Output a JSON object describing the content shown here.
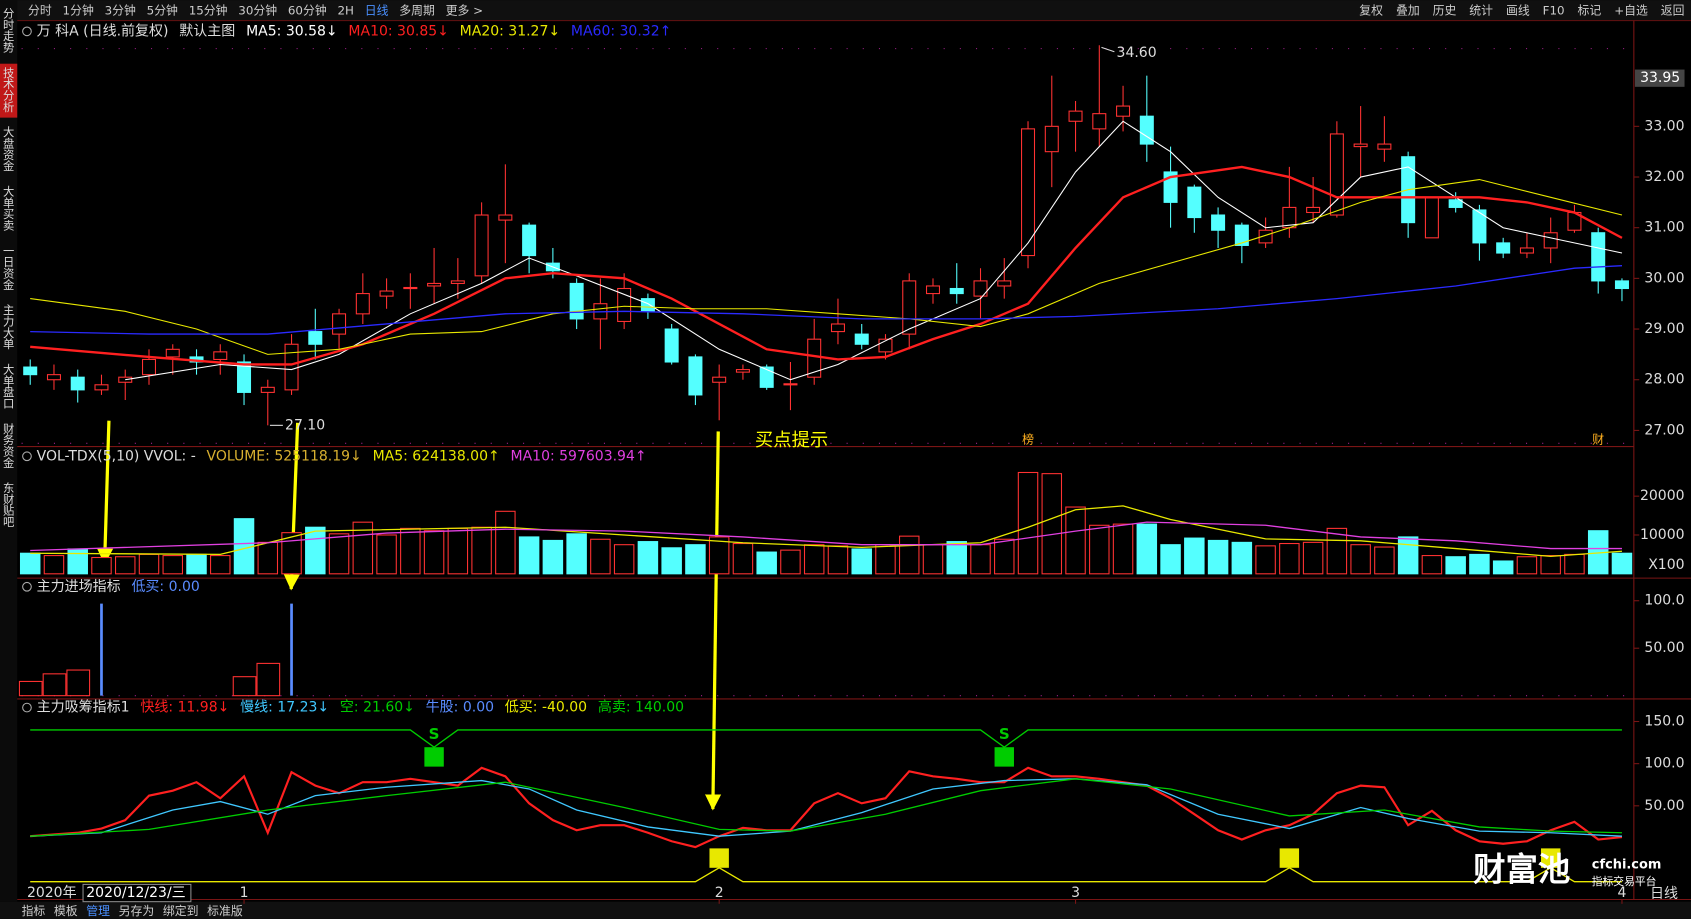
{
  "toolbar": {
    "periods": [
      "分时",
      "1分钟",
      "3分钟",
      "5分钟",
      "15分钟",
      "30分钟",
      "60分钟",
      "2H",
      "日线",
      "多周期",
      "更多 >"
    ],
    "active": 8,
    "tools": [
      "复权",
      "叠加",
      "历史",
      "统计",
      "画线",
      "F10",
      "标记",
      "+自选",
      "返回"
    ]
  },
  "side_tabs": [
    "分时走势",
    "技术分析",
    "大盘资金",
    "大单买卖",
    "一日资金",
    "主力大单",
    "大单盘口",
    "财务资金",
    "东财贴吧"
  ],
  "side_active": 1,
  "chart_data": [
    {
      "type": "candlestick",
      "title": "万 科A (日线.前复权)",
      "subtitle": "默认主图",
      "xlim": [
        -0.5,
        67.5
      ],
      "ylim": [
        26.66,
        34.64
      ],
      "yticks": [
        {
          "value": 27,
          "label": "27.00"
        },
        {
          "value": 28,
          "label": "28.00"
        },
        {
          "value": 29,
          "label": "29.00"
        },
        {
          "value": 30,
          "label": "30.00"
        },
        {
          "value": 31,
          "label": "31.00"
        },
        {
          "value": 32,
          "label": "32.00"
        },
        {
          "value": 33,
          "label": "33.00"
        }
      ],
      "xticks": [
        {
          "value": 9,
          "label": "1"
        },
        {
          "value": 29,
          "label": "2"
        },
        {
          "value": 44,
          "label": "3"
        },
        {
          "value": 67,
          "label": "4"
        }
      ],
      "up_color": "#ff3232",
      "down_color": "#54ffff",
      "open": [
        28.25,
        28.0,
        28.05,
        27.8,
        27.95,
        28.1,
        28.45,
        28.45,
        28.4,
        28.35,
        27.75,
        27.8,
        28.95,
        28.9,
        29.3,
        29.65,
        29.8,
        29.85,
        29.9,
        30.05,
        31.15,
        31.05,
        30.3,
        29.9,
        29.2,
        29.15,
        29.6,
        29.0,
        28.45,
        27.95,
        28.15,
        28.25,
        27.9,
        28.05,
        28.95,
        28.9,
        28.55,
        28.9,
        29.7,
        29.8,
        29.65,
        29.85,
        30.45,
        32.5,
        33.1,
        32.95,
        33.2,
        33.2,
        32.1,
        31.8,
        31.25,
        31.05,
        30.7,
        31.0,
        31.3,
        31.25,
        32.6,
        32.55,
        32.4,
        30.8,
        31.55,
        31.35,
        30.7,
        30.5,
        30.6,
        30.95,
        30.9,
        29.95
      ],
      "high": [
        28.4,
        28.3,
        28.2,
        28.1,
        28.2,
        28.6,
        28.7,
        28.6,
        28.7,
        28.5,
        28.0,
        28.9,
        29.4,
        29.4,
        30.1,
        30.0,
        30.1,
        30.6,
        30.4,
        31.5,
        32.25,
        31.1,
        30.6,
        30.0,
        30.0,
        30.1,
        29.7,
        29.1,
        28.5,
        28.3,
        28.3,
        28.3,
        28.35,
        29.2,
        29.6,
        29.1,
        28.9,
        30.1,
        30.0,
        30.3,
        30.2,
        30.4,
        33.1,
        34.0,
        33.5,
        34.6,
        33.8,
        34.0,
        32.6,
        31.85,
        31.4,
        31.1,
        31.2,
        32.2,
        32.0,
        33.1,
        33.4,
        33.2,
        32.5,
        31.6,
        31.7,
        31.45,
        30.8,
        30.9,
        31.2,
        31.45,
        31.0,
        30.0
      ],
      "low": [
        27.9,
        27.8,
        27.55,
        27.7,
        27.6,
        27.9,
        28.1,
        28.1,
        28.1,
        27.5,
        27.1,
        27.7,
        28.4,
        28.6,
        29.1,
        29.4,
        29.4,
        29.5,
        29.6,
        29.9,
        30.3,
        30.1,
        30.0,
        29.0,
        28.6,
        29.0,
        29.2,
        28.3,
        27.5,
        27.2,
        28.0,
        27.8,
        27.4,
        27.9,
        28.7,
        28.6,
        28.4,
        28.6,
        29.5,
        29.5,
        29.2,
        29.6,
        30.2,
        31.8,
        32.5,
        32.6,
        32.9,
        32.3,
        31.0,
        30.9,
        30.6,
        30.3,
        30.6,
        30.8,
        31.1,
        31.2,
        32.0,
        32.3,
        30.8,
        30.8,
        31.3,
        30.35,
        30.4,
        30.4,
        30.3,
        30.9,
        29.7,
        29.55
      ],
      "close": [
        28.1,
        28.1,
        27.8,
        27.9,
        28.05,
        28.4,
        28.6,
        28.35,
        28.55,
        27.75,
        27.85,
        28.7,
        28.7,
        29.3,
        29.7,
        29.75,
        29.82,
        29.9,
        29.95,
        31.25,
        31.25,
        30.45,
        30.15,
        29.2,
        29.5,
        29.8,
        29.35,
        28.35,
        27.7,
        28.05,
        28.2,
        27.85,
        27.92,
        28.8,
        29.1,
        28.7,
        28.8,
        29.95,
        29.85,
        29.7,
        29.95,
        29.95,
        32.95,
        33.0,
        33.3,
        33.25,
        33.4,
        32.65,
        31.5,
        31.2,
        30.95,
        30.65,
        30.95,
        31.4,
        31.4,
        32.85,
        32.65,
        32.65,
        31.1,
        31.6,
        31.4,
        30.7,
        30.5,
        30.6,
        30.9,
        31.3,
        29.95,
        29.8
      ],
      "series": [
        {
          "name": "MA5: 30.58↓",
          "color": "#ffffff",
          "width": 1,
          "x": [
            4,
            8,
            11,
            13,
            16,
            19,
            21,
            23,
            26,
            29,
            32,
            34,
            37,
            40,
            42,
            44,
            46,
            48,
            50,
            52,
            54,
            56,
            58,
            60,
            62,
            64,
            67
          ],
          "values": [
            28.0,
            28.3,
            28.2,
            28.5,
            29.3,
            29.9,
            30.4,
            30.05,
            29.5,
            28.6,
            28.0,
            28.3,
            29.0,
            29.6,
            30.7,
            32.1,
            33.1,
            32.5,
            31.6,
            31.0,
            31.1,
            32.0,
            32.2,
            31.6,
            31.0,
            30.8,
            30.5
          ]
        },
        {
          "name": "MA10: 30.85↓",
          "color": "#ff2020",
          "width": 2.2,
          "x": [
            0,
            5,
            9,
            11,
            14,
            17,
            20,
            22,
            25,
            27,
            29,
            31,
            34,
            36,
            38,
            40,
            42,
            44,
            46,
            48,
            51,
            53,
            55,
            57,
            59,
            61,
            63,
            65,
            67
          ],
          "values": [
            28.65,
            28.45,
            28.3,
            28.3,
            28.7,
            29.3,
            30.0,
            30.1,
            30.0,
            29.6,
            29.1,
            28.6,
            28.4,
            28.45,
            28.8,
            29.1,
            29.5,
            30.6,
            31.6,
            32.0,
            32.2,
            32.0,
            31.6,
            31.6,
            31.6,
            31.6,
            31.5,
            31.3,
            30.8
          ]
        },
        {
          "name": "MA20: 31.27↓",
          "color": "#e8e800",
          "width": 1,
          "x": [
            0,
            4,
            7,
            10,
            13,
            16,
            19,
            22,
            25,
            28,
            31,
            34,
            37,
            40,
            42,
            45,
            48,
            51,
            53,
            56,
            58,
            61,
            64,
            67
          ],
          "values": [
            29.6,
            29.35,
            29.0,
            28.5,
            28.6,
            28.9,
            28.95,
            29.3,
            29.45,
            29.4,
            29.4,
            29.3,
            29.2,
            29.05,
            29.3,
            29.9,
            30.3,
            30.7,
            31.0,
            31.5,
            31.75,
            31.95,
            31.6,
            31.25
          ]
        },
        {
          "name": "MA60: 30.32↑",
          "color": "#2a2aff",
          "width": 1.2,
          "x": [
            0,
            5,
            10,
            15,
            20,
            25,
            30,
            35,
            40,
            44,
            50,
            55,
            60,
            65,
            67
          ],
          "values": [
            28.95,
            28.9,
            28.9,
            29.1,
            29.3,
            29.35,
            29.3,
            29.2,
            29.2,
            29.25,
            29.4,
            29.6,
            29.85,
            30.2,
            30.25
          ]
        }
      ],
      "annotations": [
        {
          "x": 45,
          "y": 34.6,
          "text": "34.60"
        },
        {
          "x": 10,
          "y": 27.1,
          "text": "27.10"
        }
      ],
      "price_tag": 33.95,
      "event_marks": [
        {
          "x": 42,
          "text": "榜"
        },
        {
          "x": 66,
          "text": "财"
        }
      ],
      "note": "买点提示"
    },
    {
      "type": "bar",
      "title": "VOL-TDX(5,10) VVOL: -",
      "xlim": [
        -0.5,
        67.5
      ],
      "ylim": [
        0,
        27500
      ],
      "yticks": [
        10000,
        20000
      ],
      "unit_label": "X100",
      "series": [
        {
          "name": "VOLUME: 525118.19↓",
          "color": "#d8b030",
          "style": "updown",
          "up_color": "#ff3232",
          "down_color": "#54ffff",
          "values": [
            5300,
            4700,
            6400,
            4200,
            4400,
            5000,
            4700,
            5000,
            4700,
            14200,
            8100,
            10600,
            12000,
            10300,
            13300,
            10000,
            11700,
            11100,
            11700,
            12000,
            16100,
            9500,
            8600,
            10300,
            8900,
            7500,
            8300,
            6700,
            7500,
            9500,
            7800,
            5600,
            6100,
            7500,
            7200,
            6400,
            7500,
            9700,
            7500,
            8300,
            7500,
            8900,
            26100,
            25800,
            17200,
            12500,
            12800,
            12800,
            7500,
            9200,
            8600,
            8100,
            7200,
            7800,
            8100,
            11700,
            7500,
            6900,
            9500,
            4700,
            4400,
            5000,
            3300,
            4400,
            4700,
            5000,
            11100,
            5300
          ]
        },
        {
          "name": "MA5: 624138.00↑",
          "color": "#e8e800",
          "style": "line",
          "x": [
            0,
            8,
            12,
            20,
            25,
            30,
            35,
            40,
            42,
            44,
            46,
            48,
            52,
            56,
            60,
            64,
            67
          ],
          "values": [
            5300,
            5000,
            11000,
            12000,
            10000,
            8000,
            6800,
            8000,
            12000,
            16500,
            17500,
            14000,
            9000,
            8500,
            6500,
            4500,
            5800
          ]
        },
        {
          "name": "MA10: 597603.94↑",
          "color": "#e040e0",
          "style": "line",
          "x": [
            0,
            10,
            15,
            20,
            25,
            30,
            35,
            40,
            44,
            47,
            52,
            56,
            60,
            64,
            67
          ],
          "values": [
            6000,
            8000,
            10500,
            11500,
            11000,
            9500,
            7500,
            7500,
            11000,
            13300,
            12500,
            9500,
            8500,
            6500,
            6500
          ]
        }
      ]
    },
    {
      "type": "bar",
      "title": "主力进场指标",
      "xlim": [
        -0.5,
        67.5
      ],
      "ylim": [
        0,
        104.5
      ],
      "yticks": [
        {
          "value": 50,
          "label": "50.00"
        },
        {
          "value": 100,
          "label": "100.0"
        }
      ],
      "series": [
        {
          "color": "#ff3232",
          "style": "box",
          "x": [
            0,
            1,
            2,
            9,
            10
          ],
          "values": [
            15,
            23,
            27,
            20,
            34
          ]
        },
        {
          "name": "低买: 0.00",
          "color": "#5a8cff",
          "style": "stick",
          "x": [
            3,
            11
          ],
          "values": [
            97,
            97
          ]
        }
      ]
    },
    {
      "type": "line",
      "title": "主力吸筹指标1",
      "xlim": [
        -0.5,
        67.5
      ],
      "ylim": [
        -56,
        164
      ],
      "yticks": [
        {
          "value": 50,
          "label": "50.00"
        },
        {
          "value": 100,
          "label": "100.0"
        },
        {
          "value": 150,
          "label": "150.0"
        }
      ],
      "series": [
        {
          "name": "快线: 11.98↓",
          "color": "#ff2020",
          "style": "line",
          "width": 2,
          "values": [
            14,
            16,
            18,
            23,
            33,
            62,
            68,
            78,
            59,
            85,
            18,
            90,
            74,
            65,
            78,
            78,
            82,
            78,
            74,
            95,
            85,
            53,
            33,
            21,
            27,
            27,
            18,
            8,
            1,
            14,
            24,
            21,
            21,
            53,
            65,
            53,
            59,
            91,
            85,
            82,
            78,
            78,
            95,
            85,
            85,
            82,
            78,
            74,
            59,
            40,
            21,
            10,
            21,
            27,
            40,
            65,
            74,
            72,
            27,
            44,
            21,
            8,
            5,
            8,
            21,
            31,
            10,
            13
          ]
        },
        {
          "name": "慢线: 17.23↓",
          "color": "#40c8ff",
          "style": "line",
          "x": [
            0,
            3,
            6,
            8,
            10,
            12,
            15,
            19,
            21,
            23,
            26,
            29,
            32,
            35,
            38,
            41,
            44,
            47,
            50,
            53,
            56,
            58,
            61,
            64,
            67
          ],
          "values": [
            14,
            18,
            45,
            55,
            40,
            62,
            72,
            80,
            70,
            45,
            25,
            14,
            20,
            42,
            70,
            80,
            82,
            75,
            40,
            23,
            48,
            35,
            20,
            18,
            14
          ]
        },
        {
          "name": "空: 21.60↓",
          "color": "#00cc00",
          "style": "line",
          "x": [
            0,
            5,
            10,
            15,
            20,
            25,
            29,
            32,
            36,
            40,
            44,
            48,
            53,
            57,
            61,
            64,
            67
          ],
          "values": [
            14,
            22,
            45,
            62,
            78,
            48,
            22,
            20,
            40,
            68,
            82,
            70,
            38,
            45,
            25,
            20,
            18
          ]
        },
        {
          "name": "牛股: 0.00",
          "color": "#5a8cff",
          "style": "none"
        },
        {
          "name": "低买: -40.00",
          "color": "#e8e800",
          "style": "level",
          "level": -40,
          "signals": [
            {
              "x": 29,
              "y": -12
            },
            {
              "x": 53,
              "y": -12
            },
            {
              "x": 64,
              "y": -12
            }
          ]
        },
        {
          "name": "高卖: 140.00",
          "color": "#00cc00",
          "style": "level",
          "level": 140,
          "signals": [
            {
              "x": 17,
              "y": 108,
              "label": "S"
            },
            {
              "x": 41,
              "y": 108,
              "label": "S"
            }
          ]
        }
      ]
    }
  ],
  "footer": {
    "year": "2020年",
    "cursor_date": "2020/12/23/三",
    "period": "日线",
    "buttons": [
      "指标",
      "模板",
      "管理",
      "另存为",
      "绑定到",
      "标准版"
    ],
    "active_button": 2
  },
  "watermark": {
    "brand": "财富池",
    "site": "cfchi.com",
    "tagline": "指标交易平台"
  }
}
